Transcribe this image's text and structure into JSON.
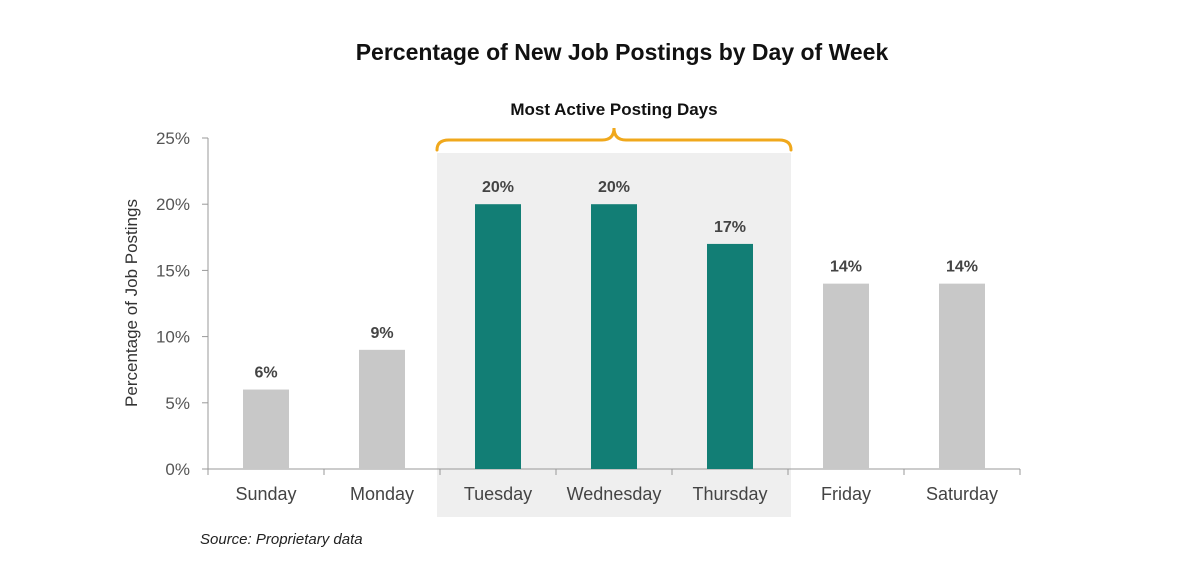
{
  "chart_data": {
    "type": "bar",
    "title": "Percentage of New Job Postings by Day of Week",
    "ylabel": "Percentage of Job Postings",
    "xlabel": "",
    "ylim": [
      0,
      25
    ],
    "yticks": [
      0,
      5,
      10,
      15,
      20,
      25
    ],
    "ytick_labels": [
      "0%",
      "5%",
      "10%",
      "15%",
      "20%",
      "25%"
    ],
    "categories": [
      "Sunday",
      "Monday",
      "Tuesday",
      "Wednesday",
      "Thursday",
      "Friday",
      "Saturday"
    ],
    "values": [
      6,
      9,
      20,
      20,
      17,
      14,
      14
    ],
    "data_labels": [
      "6%",
      "9%",
      "20%",
      "20%",
      "17%",
      "14%",
      "14%"
    ],
    "highlighted": [
      false,
      false,
      true,
      true,
      true,
      false,
      false
    ],
    "highlight_group_label": "Most Active Posting Days",
    "grid": false,
    "source_note": "Source: Proprietary data",
    "colors": {
      "default_bar": "#c8c8c8",
      "highlight_bar": "#127e75",
      "highlight_panel": "#efefef",
      "bracket": "#f0a81c",
      "axis": "#999999"
    }
  }
}
